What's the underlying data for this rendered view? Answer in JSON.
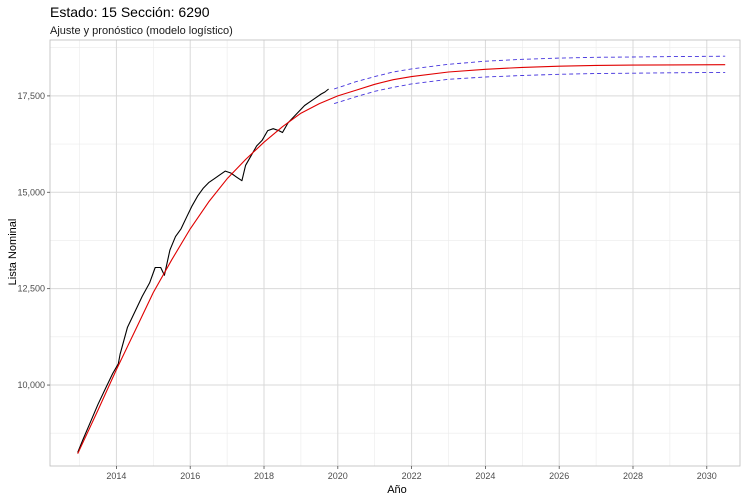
{
  "chart_data": {
    "type": "line",
    "title": "Estado: 15 Sección: 6290",
    "subtitle": "Ajuste y pronóstico (modelo logístico)",
    "xlabel": "Año",
    "ylabel": "Lista Nominal",
    "xlim": [
      2012.2,
      2030.9
    ],
    "ylim": [
      7900,
      18950
    ],
    "x_ticks": [
      2014,
      2016,
      2018,
      2020,
      2022,
      2024,
      2026,
      2028,
      2030
    ],
    "y_ticks": [
      10000,
      12500,
      15000,
      17500
    ],
    "y_tick_labels": [
      "10,000",
      "12,500",
      "15,000",
      "17,500"
    ],
    "grid": true,
    "legend": "none",
    "series": [
      {
        "style": "observed",
        "color": "#000000",
        "x": [
          2012.95,
          2013.1,
          2013.3,
          2013.5,
          2013.7,
          2013.9,
          2014.05,
          2014.1,
          2014.3,
          2014.5,
          2014.7,
          2014.9,
          2015.05,
          2015.2,
          2015.3,
          2015.45,
          2015.6,
          2015.75,
          2015.9,
          2016.05,
          2016.2,
          2016.35,
          2016.5,
          2016.65,
          2016.8,
          2016.95,
          2017.1,
          2017.25,
          2017.4,
          2017.5,
          2017.65,
          2017.8,
          2017.95,
          2018.1,
          2018.25,
          2018.4,
          2018.5,
          2018.65,
          2018.8,
          2018.95,
          2019.1,
          2019.25,
          2019.4,
          2019.55,
          2019.65,
          2019.75
        ],
        "y": [
          8250,
          8600,
          9050,
          9500,
          9900,
          10300,
          10550,
          10800,
          11500,
          11900,
          12300,
          12650,
          13050,
          13050,
          12850,
          13500,
          13850,
          14050,
          14350,
          14650,
          14900,
          15100,
          15250,
          15350,
          15450,
          15550,
          15500,
          15400,
          15300,
          15700,
          15950,
          16200,
          16350,
          16600,
          16650,
          16600,
          16550,
          16800,
          16950,
          17100,
          17250,
          17350,
          17450,
          17550,
          17600,
          17680
        ]
      },
      {
        "style": "fit",
        "color": "#e00000",
        "x": [
          2012.95,
          2013.5,
          2014,
          2014.5,
          2015,
          2015.5,
          2016,
          2016.5,
          2017,
          2017.5,
          2018,
          2018.5,
          2019,
          2019.5,
          2020,
          2020.5,
          2021,
          2021.5,
          2022,
          2023,
          2024,
          2025,
          2026,
          2027,
          2028,
          2029,
          2030.5
        ],
        "y": [
          8220,
          9350,
          10400,
          11400,
          12400,
          13250,
          14050,
          14750,
          15350,
          15850,
          16300,
          16700,
          17050,
          17300,
          17500,
          17650,
          17800,
          17920,
          18000,
          18120,
          18190,
          18240,
          18270,
          18290,
          18300,
          18305,
          18310
        ]
      },
      {
        "style": "upper",
        "color": "#4433dd",
        "x": [
          2019.9,
          2020.5,
          2021,
          2021.5,
          2022,
          2023,
          2024,
          2025,
          2026,
          2027,
          2028,
          2029,
          2030.5
        ],
        "y": [
          17680,
          17870,
          18000,
          18120,
          18200,
          18320,
          18400,
          18450,
          18480,
          18500,
          18510,
          18520,
          18530
        ]
      },
      {
        "style": "lower",
        "color": "#4433dd",
        "x": [
          2019.9,
          2020.5,
          2021,
          2021.5,
          2022,
          2023,
          2024,
          2025,
          2026,
          2027,
          2028,
          2029,
          2030.5
        ],
        "y": [
          17300,
          17480,
          17620,
          17720,
          17810,
          17930,
          17990,
          18030,
          18060,
          18080,
          18090,
          18100,
          18110
        ]
      }
    ]
  }
}
